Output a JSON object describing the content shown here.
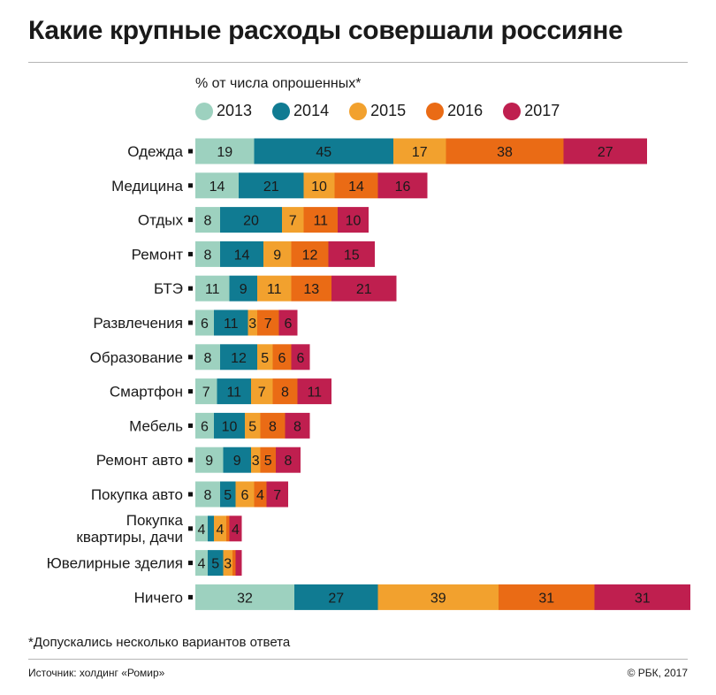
{
  "title": "Какие крупные расходы совершали россияне",
  "subtitle": "% от числа опрошенных*",
  "footnote": "*Допускались несколько вариантов ответа",
  "source": "Источник: холдинг «Ромир»",
  "copyright": "© РБК, 2017",
  "chart_data": {
    "type": "bar",
    "orientation": "horizontal",
    "stacked": true,
    "title": "Какие крупные расходы совершали россияне",
    "subtitle": "% от числа опрошенных*",
    "legend": "top",
    "grid": false,
    "categories": [
      "Одежда",
      "Медицина",
      "Отдых",
      "Ремонт",
      "БТЭ",
      "Развлечения",
      "Образование",
      "Смартфон",
      "Мебель",
      "Ремонт авто",
      "Покупка авто",
      "Покупка квартиры, дачи",
      "Ювелирные зделия",
      "Ничего"
    ],
    "series": [
      {
        "name": "2013",
        "color": "#9dd1bf",
        "values": [
          19,
          14,
          8,
          8,
          11,
          6,
          8,
          7,
          6,
          9,
          8,
          4,
          4,
          32
        ]
      },
      {
        "name": "2014",
        "color": "#107b92",
        "values": [
          45,
          21,
          20,
          14,
          9,
          11,
          12,
          11,
          10,
          9,
          5,
          2,
          5,
          27
        ]
      },
      {
        "name": "2015",
        "color": "#f2a12e",
        "values": [
          17,
          10,
          7,
          9,
          11,
          3,
          5,
          7,
          5,
          3,
          6,
          4,
          3,
          39
        ]
      },
      {
        "name": "2016",
        "color": "#ea6b15",
        "values": [
          38,
          14,
          11,
          12,
          13,
          7,
          6,
          8,
          8,
          5,
          4,
          1,
          1,
          31
        ]
      },
      {
        "name": "2017",
        "color": "#bf1f4f",
        "values": [
          27,
          16,
          10,
          15,
          21,
          6,
          6,
          11,
          8,
          8,
          7,
          4,
          2,
          31
        ]
      }
    ],
    "shown_labels": [
      [
        "19",
        "45",
        "17",
        "38",
        "27"
      ],
      [
        "14",
        "21",
        "10",
        "14",
        "16"
      ],
      [
        "8",
        "20",
        "7",
        "11",
        "10"
      ],
      [
        "8",
        "14",
        "9",
        "12",
        "15"
      ],
      [
        "11",
        "9",
        "11",
        "13",
        "21"
      ],
      [
        "6",
        "11",
        "3",
        "7",
        "6"
      ],
      [
        "8",
        "12",
        "5",
        "6",
        "6"
      ],
      [
        "7",
        "11",
        "7",
        "8",
        "11"
      ],
      [
        "6",
        "10",
        "5",
        "8",
        "8"
      ],
      [
        "9",
        "9",
        "3",
        "5",
        "8"
      ],
      [
        "8",
        "5",
        "6",
        "4",
        "7"
      ],
      [
        "4",
        "",
        "4",
        "",
        "4"
      ],
      [
        "4",
        "5",
        "3",
        "",
        ""
      ],
      [
        "32",
        "27",
        "39",
        "31",
        "31"
      ]
    ]
  }
}
